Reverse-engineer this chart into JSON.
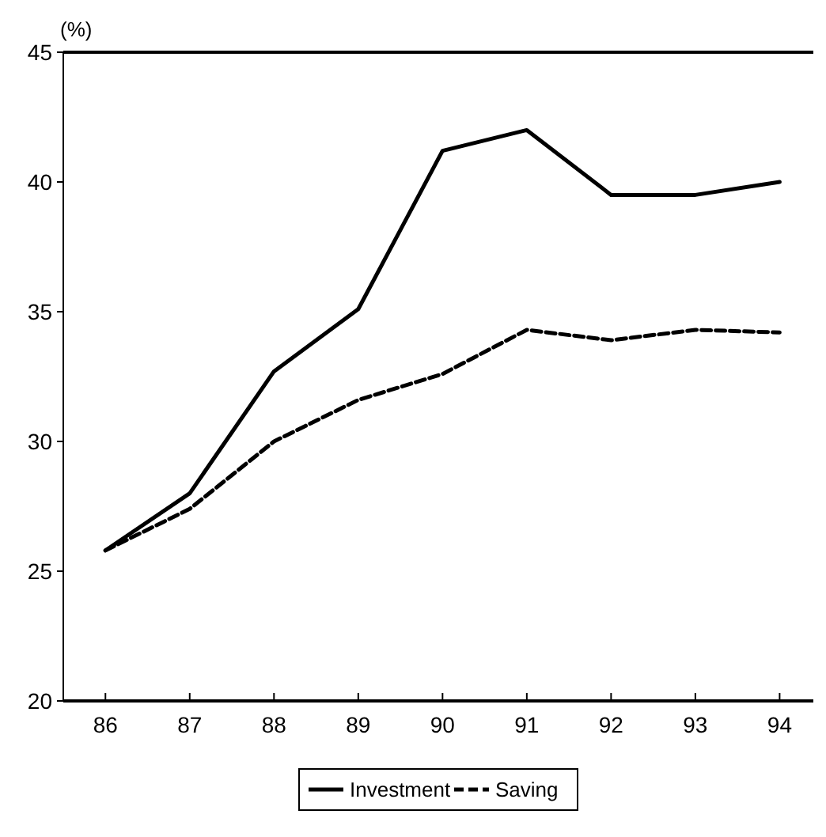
{
  "chart_data": {
    "type": "line",
    "ylabel": "(%)",
    "x": [
      86,
      87,
      88,
      89,
      90,
      91,
      92,
      93,
      94
    ],
    "series": [
      {
        "name": "Investment",
        "color": "#000000",
        "line_style": "solid",
        "values": [
          25.8,
          28.0,
          32.7,
          35.1,
          41.2,
          42.0,
          39.5,
          39.5,
          40.0
        ]
      },
      {
        "name": "Saving",
        "color": "#000000",
        "line_style": "dashed",
        "values": [
          25.8,
          27.4,
          30.0,
          31.6,
          32.6,
          34.3,
          33.9,
          34.3,
          34.2
        ]
      }
    ],
    "xlim": [
      85.5,
      94.4
    ],
    "xticks": [
      86,
      87,
      88,
      89,
      90,
      91,
      92,
      93,
      94
    ],
    "ylim": [
      20,
      45
    ],
    "yticks": [
      20,
      25,
      30,
      35,
      40,
      45
    ],
    "grid": false,
    "legend": "bottom",
    "marker": "none"
  }
}
